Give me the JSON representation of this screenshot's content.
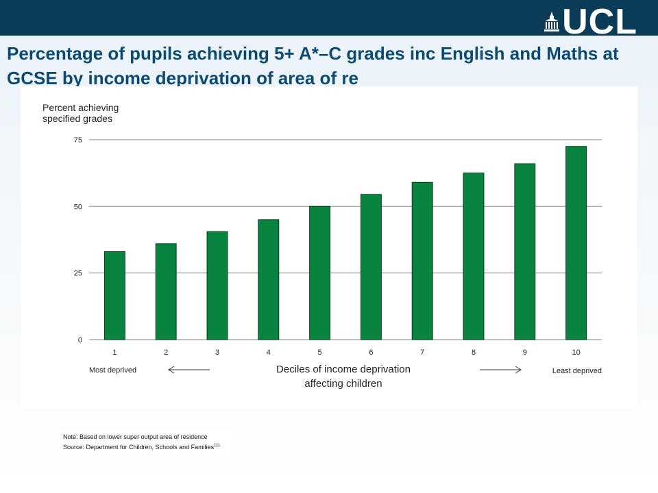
{
  "header": {
    "logo_text": "UCL",
    "logo_icon": "portico-icon",
    "bar_color": "#0b3c57"
  },
  "title": "Percentage of pupils achieving 5+ A*–C grades inc English and Maths at GCSE by income deprivation of area of re",
  "chart_data": {
    "type": "bar",
    "title": "",
    "ylabel": "Percent achieving specified grades",
    "xlabel": "Deciles of income deprivation affecting children",
    "categories": [
      "1",
      "2",
      "3",
      "4",
      "5",
      "6",
      "7",
      "8",
      "9",
      "10"
    ],
    "values": [
      33,
      36,
      40.5,
      45,
      50,
      54.5,
      59,
      62.5,
      66,
      72.5
    ],
    "ylim": [
      0,
      75
    ],
    "yticks": [
      "0",
      "25",
      "50",
      "75"
    ],
    "grid": true,
    "bar_color": "#08843e",
    "left_annotation": "Most deprived",
    "right_annotation": "Least deprived"
  },
  "note": {
    "line1": "Note: Based on lower super output area of residence",
    "line2": "Source: Department for Children, Schools and Families",
    "superscript": "111"
  }
}
